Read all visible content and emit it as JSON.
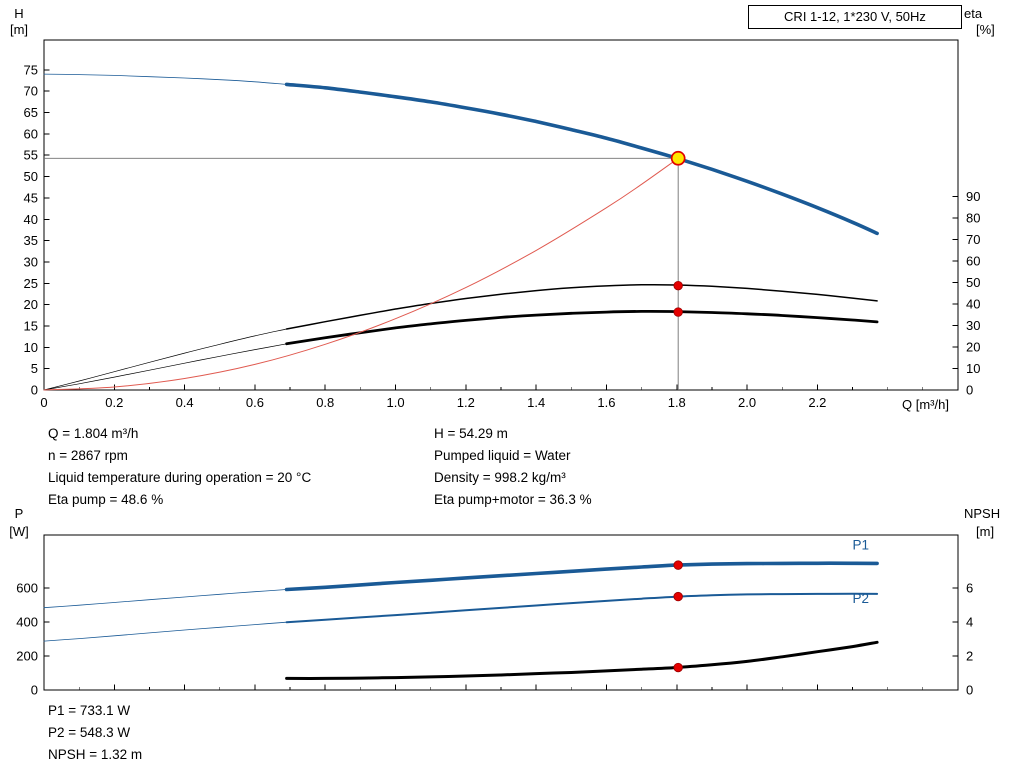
{
  "colors": {
    "curve_blue": "#1a5a96",
    "curve_black": "#000000",
    "system_curve_red": "#e05a50",
    "marker_red": "#e40000",
    "marker_red_edge": "#9b0000",
    "operating_point_fill": "#ffe600",
    "operating_point_stroke": "#e00000",
    "guide_gray": "#707070",
    "frame_black": "#000000"
  },
  "info_top": {
    "left": [
      "Q = 1.804 m³/h",
      "n = 2867 rpm",
      "Liquid temperature during operation = 20 °C",
      "Eta pump = 48.6 %"
    ],
    "right": [
      "H = 54.29 m",
      "Pumped liquid = Water",
      "Density = 998.2 kg/m³",
      "Eta pump+motor = 36.3 %"
    ]
  },
  "info_bottom": [
    "P1 = 733.1 W",
    "P2 = 548.3 W",
    "NPSH = 1.32 m"
  ],
  "chart_data": [
    {
      "type": "line",
      "title": "CRI 1-12, 1*230 V, 50Hz",
      "x_axis": {
        "label": "Q [m³/h]",
        "min": 0,
        "max": 2.6,
        "minor_step": 0.1,
        "ticks": [
          0,
          0.2,
          0.4,
          0.6,
          0.8,
          1.0,
          1.2,
          1.4,
          1.6,
          1.8,
          2.0,
          2.2
        ],
        "tick_labels": [
          "0",
          "0.2",
          "0.4",
          "0.6",
          "0.8",
          "1.0",
          "1.2",
          "1.4",
          "1.6",
          "1.8",
          "2.0",
          "2.2"
        ]
      },
      "y_left": {
        "label": "H",
        "unit": "[m]",
        "min": 0,
        "max": 82,
        "ticks": [
          0,
          5,
          10,
          15,
          20,
          25,
          30,
          35,
          40,
          45,
          50,
          55,
          60,
          65,
          70,
          75
        ]
      },
      "y_right": {
        "label": "eta",
        "unit": "[%]",
        "min": 0,
        "max": 163,
        "ticks": [
          0,
          10,
          20,
          30,
          40,
          50,
          60,
          70,
          80,
          90
        ]
      },
      "operating_point": {
        "q": 1.804,
        "value": 54.29,
        "axis": "left"
      },
      "markers": [
        {
          "q": 1.804,
          "value": 48.6,
          "axis": "right"
        },
        {
          "q": 1.804,
          "value": 36.3,
          "axis": "right"
        }
      ],
      "series": [
        {
          "name": "pump-curve",
          "axis": "left",
          "color": "#1a5a96",
          "split_q": 0.69,
          "width_thin": 0.8,
          "width": 3.6,
          "points": [
            [
              0,
              74.0
            ],
            [
              0.1,
              73.9
            ],
            [
              0.2,
              73.7
            ],
            [
              0.3,
              73.4
            ],
            [
              0.4,
              73.1
            ],
            [
              0.5,
              72.7
            ],
            [
              0.6,
              72.2
            ],
            [
              0.69,
              71.6
            ],
            [
              0.8,
              70.8
            ],
            [
              0.9,
              69.8
            ],
            [
              1.0,
              68.7
            ],
            [
              1.1,
              67.5
            ],
            [
              1.2,
              66.1
            ],
            [
              1.3,
              64.6
            ],
            [
              1.4,
              62.9
            ],
            [
              1.5,
              61.0
            ],
            [
              1.6,
              59.0
            ],
            [
              1.7,
              56.7
            ],
            [
              1.8,
              54.3
            ],
            [
              1.9,
              51.7
            ],
            [
              2.0,
              48.9
            ],
            [
              2.1,
              45.9
            ],
            [
              2.2,
              42.7
            ],
            [
              2.3,
              39.3
            ],
            [
              2.37,
              36.7
            ]
          ]
        },
        {
          "name": "eta-pump-curve",
          "axis": "right",
          "color": "#000000",
          "split_q": 0.69,
          "width_thin": 0.7,
          "width": 1.5,
          "points": [
            [
              0,
              0
            ],
            [
              0.1,
              4.2
            ],
            [
              0.2,
              8.5
            ],
            [
              0.3,
              12.9
            ],
            [
              0.4,
              17.2
            ],
            [
              0.5,
              21.3
            ],
            [
              0.6,
              25.2
            ],
            [
              0.69,
              28.4
            ],
            [
              0.8,
              31.8
            ],
            [
              0.9,
              34.8
            ],
            [
              1.0,
              37.7
            ],
            [
              1.1,
              40.3
            ],
            [
              1.2,
              42.6
            ],
            [
              1.3,
              44.6
            ],
            [
              1.4,
              46.3
            ],
            [
              1.5,
              47.6
            ],
            [
              1.6,
              48.5
            ],
            [
              1.7,
              49.0
            ],
            [
              1.8,
              48.9
            ],
            [
              1.9,
              48.3
            ],
            [
              2.0,
              47.3
            ],
            [
              2.1,
              46.0
            ],
            [
              2.2,
              44.5
            ],
            [
              2.3,
              42.8
            ],
            [
              2.37,
              41.5
            ]
          ]
        },
        {
          "name": "eta-pump-motor-curve",
          "axis": "right",
          "color": "#000000",
          "split_q": 0.69,
          "width_thin": 0.7,
          "width": 2.8,
          "points": [
            [
              0,
              0
            ],
            [
              0.1,
              2.9
            ],
            [
              0.2,
              6.0
            ],
            [
              0.3,
              9.2
            ],
            [
              0.4,
              12.5
            ],
            [
              0.5,
              15.7
            ],
            [
              0.6,
              18.8
            ],
            [
              0.69,
              21.5
            ],
            [
              0.8,
              24.3
            ],
            [
              0.9,
              26.7
            ],
            [
              1.0,
              28.9
            ],
            [
              1.1,
              30.8
            ],
            [
              1.2,
              32.4
            ],
            [
              1.3,
              33.8
            ],
            [
              1.4,
              34.9
            ],
            [
              1.5,
              35.7
            ],
            [
              1.6,
              36.3
            ],
            [
              1.7,
              36.6
            ],
            [
              1.8,
              36.5
            ],
            [
              1.9,
              36.1
            ],
            [
              2.0,
              35.5
            ],
            [
              2.1,
              34.7
            ],
            [
              2.2,
              33.7
            ],
            [
              2.3,
              32.6
            ],
            [
              2.37,
              31.7
            ]
          ]
        },
        {
          "name": "system-curve",
          "axis": "left",
          "color": "#e05a50",
          "width": 1.0,
          "points": [
            [
              0,
              0
            ],
            [
              0.2,
              0.7
            ],
            [
              0.4,
              2.7
            ],
            [
              0.6,
              6.0
            ],
            [
              0.8,
              10.7
            ],
            [
              1.0,
              16.7
            ],
            [
              1.2,
              24.0
            ],
            [
              1.4,
              32.7
            ],
            [
              1.6,
              42.7
            ],
            [
              1.7,
              48.2
            ],
            [
              1.804,
              54.29
            ]
          ]
        }
      ]
    },
    {
      "type": "line",
      "title": "",
      "x_axis": {
        "label": "",
        "min": 0,
        "max": 2.6,
        "minor_step": 0.1,
        "ticks": [
          0,
          0.2,
          0.4,
          0.6,
          0.8,
          1.0,
          1.2,
          1.4,
          1.6,
          1.8,
          2.0,
          2.2
        ],
        "tick_labels": []
      },
      "y_left": {
        "label": "P",
        "unit": "[W]",
        "min": 0,
        "max": 910,
        "ticks": [
          0,
          200,
          400,
          600
        ]
      },
      "y_right": {
        "label": "NPSH",
        "unit": "[m]",
        "min": 0,
        "max": 9.1,
        "ticks": [
          0,
          2,
          4,
          6
        ]
      },
      "markers": [
        {
          "q": 1.804,
          "value": 733.1,
          "axis": "left"
        },
        {
          "q": 1.804,
          "value": 548.3,
          "axis": "left"
        },
        {
          "q": 1.804,
          "value": 1.32,
          "axis": "right"
        }
      ],
      "series": [
        {
          "name": "p1-curve",
          "axis": "left",
          "color": "#1a5a96",
          "split_q": 0.69,
          "width_thin": 0.8,
          "width": 3.6,
          "label": "P1",
          "label_pos": [
            2.3,
            825
          ],
          "points": [
            [
              0,
              483
            ],
            [
              0.1,
              498
            ],
            [
              0.2,
              514
            ],
            [
              0.3,
              530
            ],
            [
              0.4,
              546
            ],
            [
              0.5,
              562
            ],
            [
              0.6,
              577
            ],
            [
              0.69,
              590
            ],
            [
              0.8,
              603
            ],
            [
              0.9,
              617
            ],
            [
              1.0,
              631
            ],
            [
              1.1,
              644
            ],
            [
              1.2,
              658
            ],
            [
              1.3,
              671
            ],
            [
              1.4,
              684
            ],
            [
              1.5,
              697
            ],
            [
              1.6,
              710
            ],
            [
              1.7,
              722
            ],
            [
              1.8,
              733
            ],
            [
              1.9,
              739
            ],
            [
              2.0,
              742
            ],
            [
              2.1,
              743
            ],
            [
              2.2,
              744
            ],
            [
              2.3,
              744
            ],
            [
              2.37,
              743
            ]
          ]
        },
        {
          "name": "p2-curve",
          "axis": "left",
          "color": "#1a5a96",
          "split_q": 0.69,
          "width_thin": 0.8,
          "width": 2.0,
          "label": "P2",
          "label_pos": [
            2.3,
            510
          ],
          "points": [
            [
              0,
              287
            ],
            [
              0.1,
              302
            ],
            [
              0.2,
              318
            ],
            [
              0.3,
              335
            ],
            [
              0.4,
              352
            ],
            [
              0.5,
              368
            ],
            [
              0.6,
              384
            ],
            [
              0.69,
              398
            ],
            [
              0.8,
              412
            ],
            [
              0.9,
              426
            ],
            [
              1.0,
              440
            ],
            [
              1.1,
              454
            ],
            [
              1.2,
              468
            ],
            [
              1.3,
              482
            ],
            [
              1.4,
              496
            ],
            [
              1.5,
              510
            ],
            [
              1.6,
              523
            ],
            [
              1.7,
              536
            ],
            [
              1.8,
              548
            ],
            [
              1.9,
              556
            ],
            [
              2.0,
              561
            ],
            [
              2.1,
              563
            ],
            [
              2.2,
              564
            ],
            [
              2.3,
              565
            ],
            [
              2.37,
              564
            ]
          ]
        },
        {
          "name": "npsh-curve",
          "axis": "right",
          "color": "#000000",
          "width": 3.0,
          "points": [
            [
              0.69,
              0.68
            ],
            [
              0.8,
              0.68
            ],
            [
              0.9,
              0.7
            ],
            [
              1.0,
              0.73
            ],
            [
              1.1,
              0.77
            ],
            [
              1.2,
              0.82
            ],
            [
              1.3,
              0.88
            ],
            [
              1.4,
              0.96
            ],
            [
              1.5,
              1.03
            ],
            [
              1.6,
              1.12
            ],
            [
              1.7,
              1.22
            ],
            [
              1.8,
              1.32
            ],
            [
              1.9,
              1.48
            ],
            [
              2.0,
              1.68
            ],
            [
              2.1,
              1.95
            ],
            [
              2.2,
              2.25
            ],
            [
              2.3,
              2.55
            ],
            [
              2.37,
              2.8
            ]
          ]
        }
      ]
    }
  ]
}
